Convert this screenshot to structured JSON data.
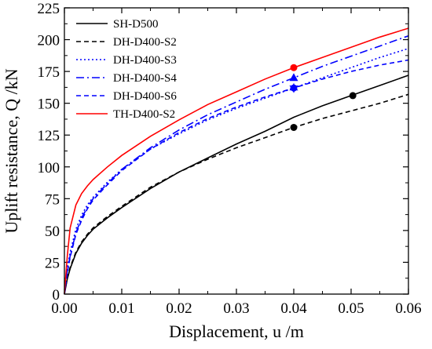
{
  "chart_data": {
    "type": "line",
    "xlabel": "Displacement, u /m",
    "ylabel": "Uplift resistance, Q /kN",
    "xlim": [
      0,
      0.06
    ],
    "ylim": [
      0,
      225
    ],
    "x_ticks": [
      "0.00",
      "0.01",
      "0.02",
      "0.03",
      "0.04",
      "0.05",
      "0.06"
    ],
    "y_ticks": [
      "0",
      "25",
      "50",
      "75",
      "100",
      "125",
      "150",
      "175",
      "200",
      "225"
    ],
    "legend_position": "top-left",
    "grid": false,
    "series": [
      {
        "name": "SH-D500",
        "color": "#000000",
        "dash": "solid",
        "points": [
          [
            0,
            0
          ],
          [
            0.0005,
            12
          ],
          [
            0.001,
            20
          ],
          [
            0.002,
            32
          ],
          [
            0.003,
            40
          ],
          [
            0.004,
            46
          ],
          [
            0.005,
            51
          ],
          [
            0.0075,
            60
          ],
          [
            0.01,
            68
          ],
          [
            0.015,
            83
          ],
          [
            0.02,
            96
          ],
          [
            0.025,
            107
          ],
          [
            0.03,
            118
          ],
          [
            0.035,
            128
          ],
          [
            0.04,
            139
          ],
          [
            0.045,
            148
          ],
          [
            0.05,
            156
          ],
          [
            0.055,
            164
          ],
          [
            0.06,
            172
          ]
        ],
        "marker": {
          "shape": "circle",
          "x": 0.0503,
          "y": 156
        }
      },
      {
        "name": "DH-D400-S2",
        "color": "#000000",
        "dash": "dashed",
        "points": [
          [
            0,
            0
          ],
          [
            0.0005,
            13
          ],
          [
            0.001,
            21
          ],
          [
            0.002,
            33
          ],
          [
            0.003,
            41
          ],
          [
            0.004,
            47
          ],
          [
            0.005,
            52
          ],
          [
            0.0075,
            61
          ],
          [
            0.01,
            69
          ],
          [
            0.015,
            84
          ],
          [
            0.02,
            96
          ],
          [
            0.025,
            106
          ],
          [
            0.03,
            115
          ],
          [
            0.035,
            123
          ],
          [
            0.04,
            131
          ],
          [
            0.045,
            138
          ],
          [
            0.05,
            144
          ],
          [
            0.055,
            150
          ],
          [
            0.06,
            157
          ]
        ],
        "marker": {
          "shape": "circle",
          "x": 0.04,
          "y": 131
        }
      },
      {
        "name": "DH-D400-S3",
        "color": "#0000ff",
        "dash": "dotted",
        "points": [
          [
            0,
            0
          ],
          [
            0.0005,
            20
          ],
          [
            0.001,
            33
          ],
          [
            0.002,
            51
          ],
          [
            0.003,
            62
          ],
          [
            0.004,
            70
          ],
          [
            0.005,
            76
          ],
          [
            0.0075,
            88
          ],
          [
            0.01,
            98
          ],
          [
            0.015,
            114
          ],
          [
            0.02,
            126
          ],
          [
            0.025,
            137
          ],
          [
            0.03,
            146
          ],
          [
            0.035,
            154
          ],
          [
            0.04,
            162
          ],
          [
            0.045,
            170
          ],
          [
            0.05,
            178
          ],
          [
            0.055,
            186
          ],
          [
            0.06,
            193
          ]
        ],
        "marker": {
          "shape": "circle",
          "x": 0.04,
          "y": 162
        }
      },
      {
        "name": "DH-D400-S4",
        "color": "#0000ff",
        "dash": "dashdot",
        "points": [
          [
            0,
            0
          ],
          [
            0.0005,
            18
          ],
          [
            0.001,
            30
          ],
          [
            0.002,
            48
          ],
          [
            0.003,
            60
          ],
          [
            0.004,
            68
          ],
          [
            0.005,
            75
          ],
          [
            0.0075,
            87
          ],
          [
            0.01,
            98
          ],
          [
            0.015,
            115
          ],
          [
            0.02,
            129
          ],
          [
            0.025,
            141
          ],
          [
            0.03,
            151
          ],
          [
            0.035,
            161
          ],
          [
            0.04,
            170
          ],
          [
            0.045,
            179
          ],
          [
            0.05,
            187
          ],
          [
            0.055,
            195
          ],
          [
            0.06,
            203
          ]
        ],
        "marker": {
          "shape": "triangle",
          "x": 0.04,
          "y": 170
        }
      },
      {
        "name": "DH-D400-S6",
        "color": "#0000ff",
        "dash": "dashed",
        "points": [
          [
            0,
            0
          ],
          [
            0.0005,
            17
          ],
          [
            0.001,
            29
          ],
          [
            0.002,
            47
          ],
          [
            0.003,
            58
          ],
          [
            0.004,
            67
          ],
          [
            0.005,
            74
          ],
          [
            0.0075,
            86
          ],
          [
            0.01,
            97
          ],
          [
            0.015,
            114
          ],
          [
            0.02,
            127
          ],
          [
            0.025,
            138
          ],
          [
            0.03,
            147
          ],
          [
            0.035,
            155
          ],
          [
            0.04,
            162
          ],
          [
            0.045,
            169
          ],
          [
            0.05,
            175
          ],
          [
            0.055,
            180
          ],
          [
            0.06,
            184
          ]
        ],
        "marker": {
          "shape": "star",
          "x": 0.04,
          "y": 162
        }
      },
      {
        "name": "TH-D400-S2",
        "color": "#ff0000",
        "dash": "solid",
        "points": [
          [
            0,
            0
          ],
          [
            0.0005,
            30
          ],
          [
            0.001,
            52
          ],
          [
            0.002,
            70
          ],
          [
            0.003,
            79
          ],
          [
            0.004,
            85
          ],
          [
            0.005,
            90
          ],
          [
            0.0075,
            100
          ],
          [
            0.01,
            109
          ],
          [
            0.015,
            124
          ],
          [
            0.02,
            137
          ],
          [
            0.025,
            149
          ],
          [
            0.03,
            159
          ],
          [
            0.035,
            169
          ],
          [
            0.04,
            178
          ],
          [
            0.045,
            186
          ],
          [
            0.05,
            194
          ],
          [
            0.055,
            202
          ],
          [
            0.06,
            209
          ]
        ],
        "marker": {
          "shape": "circle",
          "x": 0.04,
          "y": 178
        }
      }
    ]
  }
}
